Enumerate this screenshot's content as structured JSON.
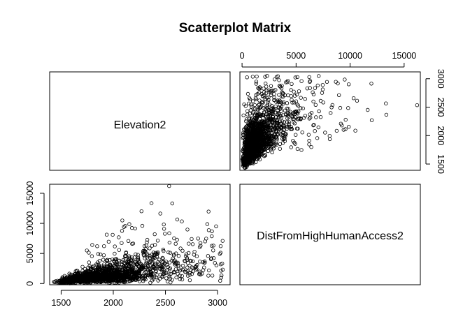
{
  "chart_data": {
    "type": "scatter",
    "title": "Scatterplot Matrix",
    "variables": [
      "Elevation2",
      "DistFromHighHumanAccess2"
    ],
    "axes": {
      "Elevation2": {
        "range": [
          1390,
          3120
        ],
        "ticks": [
          "1500",
          "2000",
          "2500",
          "3000"
        ]
      },
      "DistFromHighHumanAccess2": {
        "range": [
          -200,
          16500
        ],
        "ticks": [
          "0",
          "5000",
          "10000",
          "15000"
        ]
      }
    },
    "panels": [
      {
        "row": 1,
        "col": 2,
        "x_var": "DistFromHighHumanAccess2",
        "y_var": "Elevation2"
      },
      {
        "row": 2,
        "col": 1,
        "x_var": "Elevation2",
        "y_var": "DistFromHighHumanAccess2"
      }
    ],
    "points": {
      "generated_from": "approximate distribution of visible point cloud",
      "n": 1600,
      "seed": 12345
    },
    "grid": false,
    "marker": "open-circle"
  }
}
